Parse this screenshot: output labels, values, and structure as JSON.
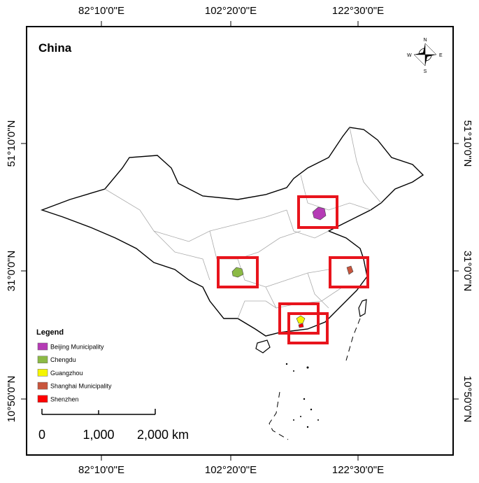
{
  "map": {
    "title": "China",
    "lon_labels": [
      "82°10'0\"E",
      "102°20'0\"E",
      "122°30'0\"E"
    ],
    "lat_labels": [
      "51°10'0\"N",
      "31°0'0\"N",
      "10°50'0\"N"
    ],
    "legend": {
      "title": "Legend",
      "items": [
        {
          "label": "Beijing Municipality",
          "color": "#b53bb5"
        },
        {
          "label": "Chengdu",
          "color": "#8cba45"
        },
        {
          "label": "Guangzhou",
          "color": "#f5f500"
        },
        {
          "label": "Shanghai Municipality",
          "color": "#c8553d"
        },
        {
          "label": "Shenzhen",
          "color": "#ff0000"
        }
      ]
    },
    "scale_bar": {
      "labels": [
        "0",
        "1,000",
        "2,000 km"
      ]
    },
    "compass": {
      "n": "N",
      "e": "E",
      "s": "S",
      "w": "W"
    }
  }
}
